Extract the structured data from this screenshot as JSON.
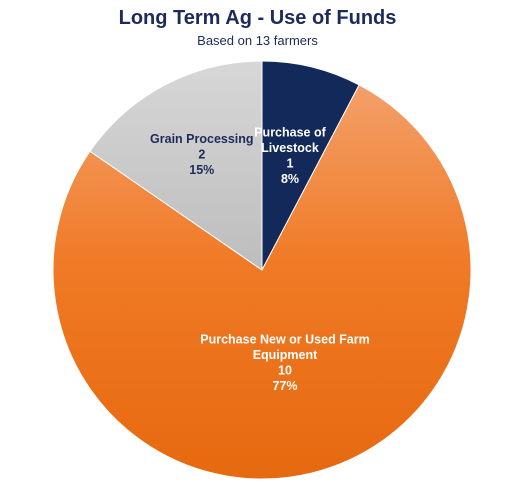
{
  "chart_data": {
    "type": "pie",
    "title": "Long Term Ag - Use of Funds",
    "subtitle": "Based on 13 farmers",
    "slices": [
      {
        "name": "Purchase of Livestock",
        "label_lines": [
          "Purchase of",
          "Livestock"
        ],
        "value": 1,
        "percent_label": "8%",
        "color": "#13295a",
        "label_color": "#ffffff"
      },
      {
        "name": "Purchase New or Used Farm Equipment",
        "label_lines": [
          "Purchase New or Used Farm",
          "Equipment"
        ],
        "value": 10,
        "percent_label": "77%",
        "color": "#f07a26",
        "label_color": "#ffffff"
      },
      {
        "name": "Grain Processing",
        "label_lines": [
          "Grain Processing"
        ],
        "value": 2,
        "percent_label": "15%",
        "color": "#c8c8c8",
        "label_color": "#1c2b5a"
      }
    ],
    "title_color": "#1c2b5a",
    "legend": "none",
    "start_angle_deg": 0,
    "direction": "clockwise"
  }
}
